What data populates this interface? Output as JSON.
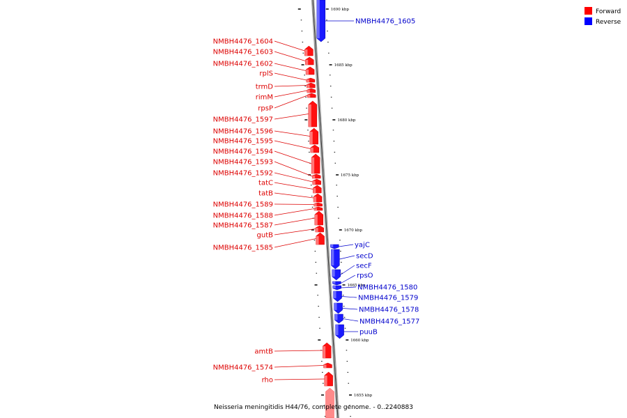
{
  "legend": {
    "forward_label": "Forward",
    "reverse_label": "Reverse",
    "forward_color": "#ff0000",
    "reverse_color": "#0000ff"
  },
  "caption": "Neisseria meningitidis H44/76, complete genome. - 0..2240883",
  "ticks": [
    "1690 kbp",
    "1685 kbp",
    "1680 kbp",
    "1675 kbp",
    "1670 kbp",
    "1665 kbp",
    "1660 kbp",
    "1655 kbp"
  ],
  "forward_genes": [
    "NMBH4476_1604",
    "NMBH4476_1603",
    "NMBH4476_1602",
    "rplS",
    "trmD",
    "rimM",
    "rpsP",
    "NMBH4476_1597",
    "NMBH4476_1596",
    "NMBH4476_1595",
    "NMBH4476_1594",
    "NMBH4476_1593",
    "NMBH4476_1592",
    "tatC",
    "tatB",
    "NMBH4476_1589",
    "NMBH4476_1588",
    "NMBH4476_1587",
    "gutB",
    "NMBH4476_1585",
    "amtB",
    "NMBH4476_1574",
    "rho"
  ],
  "reverse_genes": [
    "NMBH4476_1605",
    "yajC",
    "secD",
    "secF",
    "rpsO",
    "NMBH4476_1580",
    "NMBH4476_1579",
    "NMBH4476_1578",
    "NMBH4476_1577",
    "puuB"
  ]
}
